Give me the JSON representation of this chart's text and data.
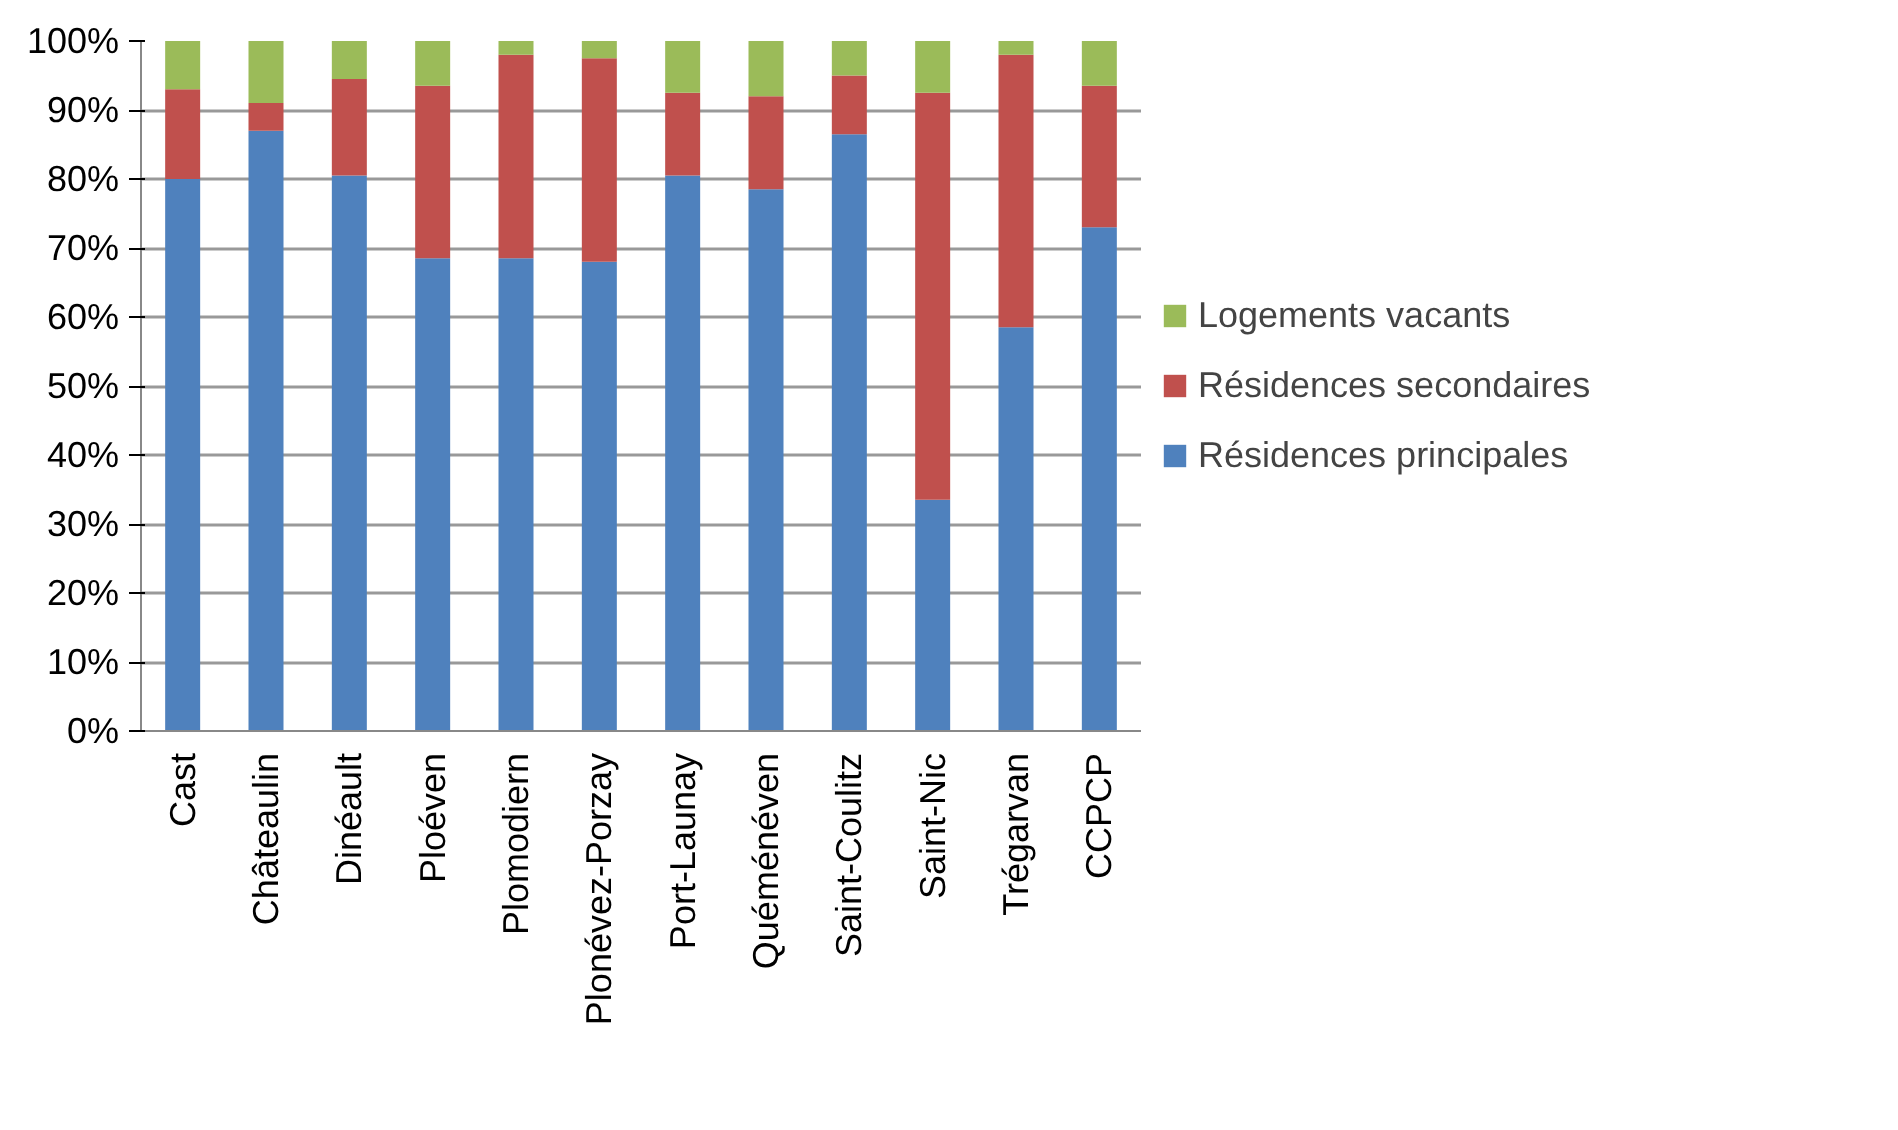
{
  "chart_data": {
    "type": "bar",
    "stacked": true,
    "categories": [
      "Cast",
      "Châteaulin",
      "Dinéault",
      "Ploéven",
      "Plomodiern",
      "Plonévez-Porzay",
      "Port-Launay",
      "Quéménéven",
      "Saint-Coulitz",
      "Saint-Nic",
      "Trégarvan",
      "CCPCP"
    ],
    "series": [
      {
        "name": "Résidences principales",
        "color": "#4f81bd",
        "values": [
          80,
          87,
          80.5,
          68.5,
          68.5,
          68,
          80.5,
          78.5,
          86.5,
          33.5,
          58.5,
          73
        ]
      },
      {
        "name": "Résidences secondaires",
        "color": "#c0504d",
        "values": [
          13,
          4,
          14,
          25,
          29.5,
          29.5,
          12,
          13.5,
          8.5,
          59,
          39.5,
          20.5
        ]
      },
      {
        "name": "Logements vacants",
        "color": "#9bbb59",
        "values": [
          7,
          9,
          5.5,
          6.5,
          2,
          2.5,
          7.5,
          8,
          5,
          7.5,
          2,
          6.5
        ]
      }
    ],
    "ylim": [
      0,
      100
    ],
    "yticks": [
      {
        "value": 0,
        "label": "0%"
      },
      {
        "value": 10,
        "label": "10%"
      },
      {
        "value": 20,
        "label": "20%"
      },
      {
        "value": 30,
        "label": "30%"
      },
      {
        "value": 40,
        "label": "40%"
      },
      {
        "value": 50,
        "label": "50%"
      },
      {
        "value": 60,
        "label": "60%"
      },
      {
        "value": 70,
        "label": "70%"
      },
      {
        "value": 80,
        "label": "80%"
      },
      {
        "value": 90,
        "label": "90%"
      },
      {
        "value": 100,
        "label": "100%"
      }
    ],
    "grid": "y",
    "legend": "right"
  }
}
